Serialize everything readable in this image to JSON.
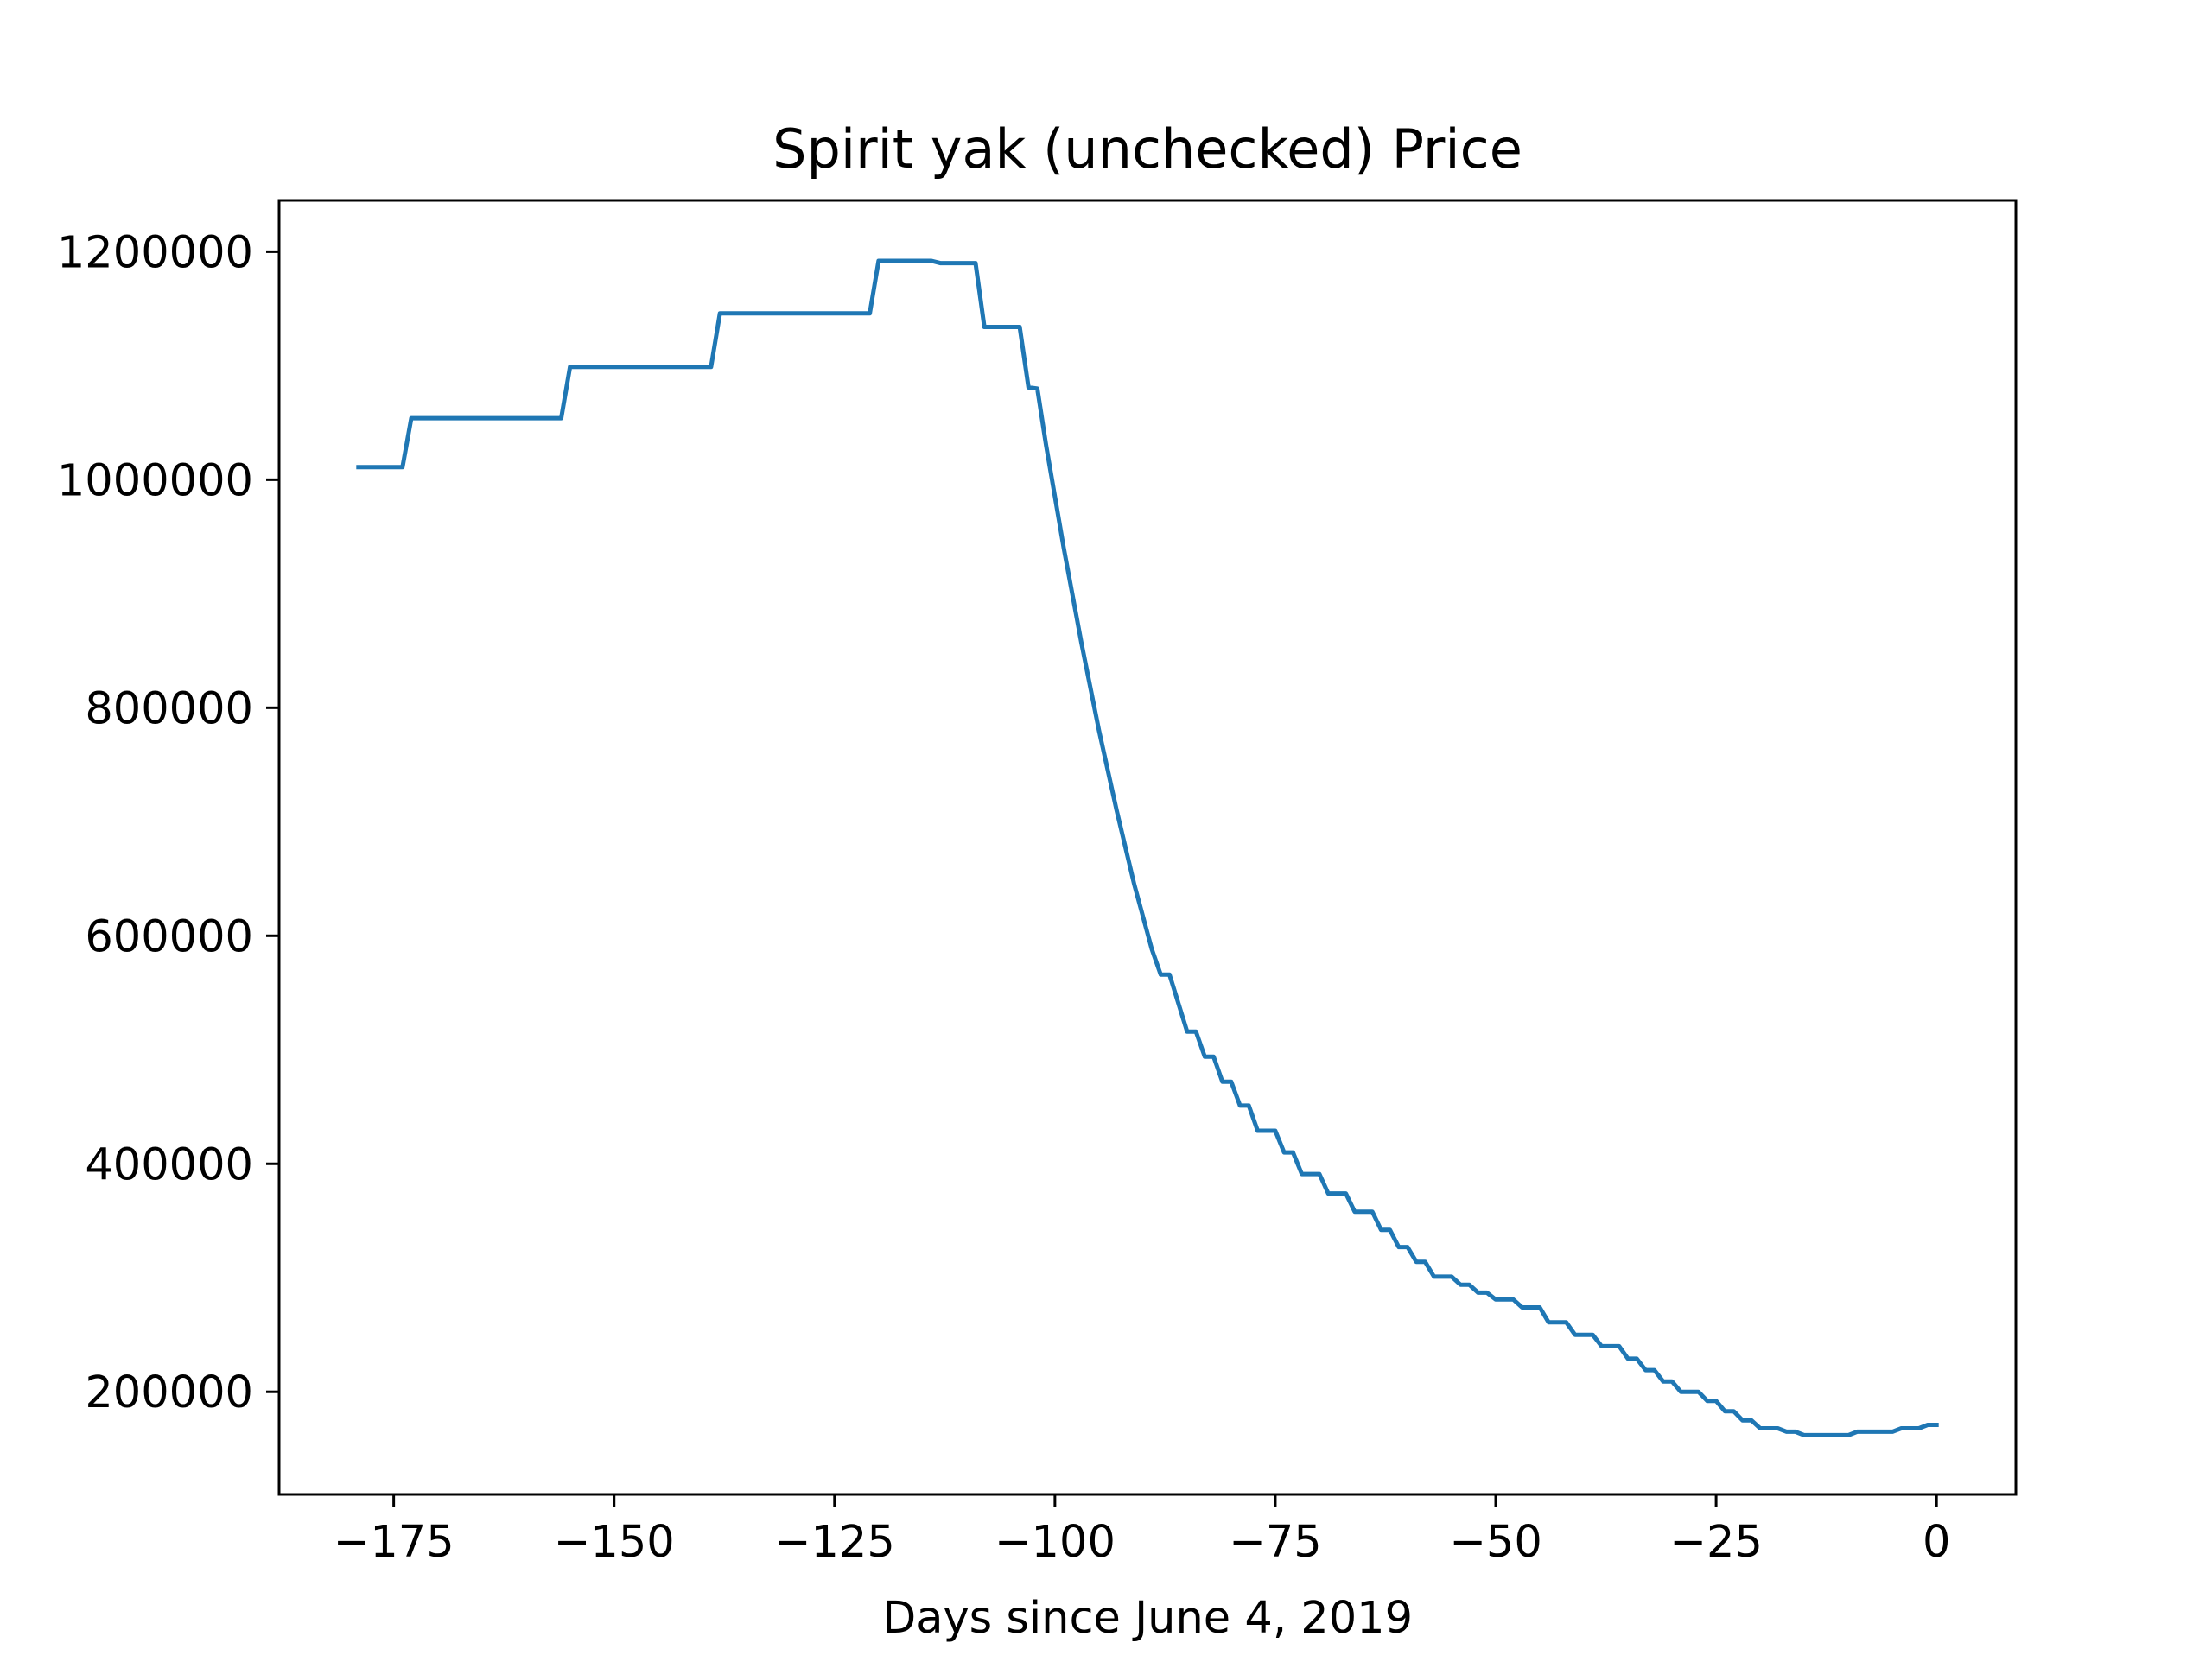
{
  "chart_data": {
    "type": "line",
    "title": "Spirit yak (unchecked) Price",
    "xlabel": "Days since June 4, 2019",
    "ylabel": "",
    "xlim": [
      -188,
      9
    ],
    "ylim": [
      110000,
      1245000
    ],
    "xticks": [
      -175,
      -150,
      -125,
      -100,
      -75,
      -50,
      -25,
      0
    ],
    "xtick_labels": [
      "−175",
      "−150",
      "−125",
      "−100",
      "−75",
      "−50",
      "−25",
      "0"
    ],
    "yticks": [
      200000,
      400000,
      600000,
      800000,
      1000000,
      1200000
    ],
    "ytick_labels": [
      "200000",
      "400000",
      "600000",
      "800000",
      "1000000",
      "1200000"
    ],
    "grid": false,
    "line_color": "#1f77b4",
    "series": [
      {
        "name": "",
        "x": [
          -179,
          -174,
          -173,
          -156,
          -155,
          -139,
          -138,
          -121,
          -120,
          -114,
          -113,
          -109,
          -108,
          -104,
          -103,
          -102,
          -101,
          -99,
          -97,
          -95,
          -93,
          -91,
          -89,
          -88,
          -87,
          -86,
          -85,
          -84,
          -83,
          -82,
          -81,
          -80,
          -79,
          -78,
          -77,
          -76,
          -75,
          -74,
          -73,
          -72,
          -71,
          -70,
          -69,
          -68,
          -67,
          -66,
          -65,
          -64,
          -63,
          -62,
          -61,
          -60,
          -59,
          -58,
          -57,
          -56,
          -55,
          -54,
          -53,
          -52,
          -51,
          -50,
          -49,
          -48,
          -47,
          -46,
          -45,
          -44,
          -43,
          -42,
          -41,
          -40,
          -39,
          -38,
          -37,
          -36,
          -35,
          -34,
          -33,
          -32,
          -31,
          -30,
          -29,
          -28,
          -27,
          -26,
          -25,
          -24,
          -23,
          -22,
          -21,
          -20,
          -19,
          -18,
          -17,
          -16,
          -15,
          -14,
          -13,
          -12,
          -11,
          -10,
          -9,
          -8,
          -7,
          -6,
          -5,
          -4,
          -3,
          -2,
          -1,
          0
        ],
        "y": [
          1011000,
          1011000,
          1054000,
          1054000,
          1099000,
          1099000,
          1146000,
          1146000,
          1192000,
          1192000,
          1190000,
          1190000,
          1134000,
          1134000,
          1081000,
          1080000,
          1030000,
          940000,
          857000,
          780000,
          710000,
          645000,
          588000,
          566000,
          566000,
          541000,
          516000,
          516000,
          494000,
          494000,
          472000,
          472000,
          451000,
          451000,
          429000,
          429000,
          429000,
          410000,
          410000,
          391000,
          391000,
          391000,
          374000,
          374000,
          374000,
          358000,
          358000,
          358000,
          342000,
          342000,
          327000,
          327000,
          314000,
          314000,
          301000,
          301000,
          301000,
          294000,
          294000,
          287000,
          287000,
          281000,
          281000,
          281000,
          274000,
          274000,
          274000,
          261000,
          261000,
          261000,
          250000,
          250000,
          250000,
          240000,
          240000,
          240000,
          229000,
          229000,
          219000,
          219000,
          209000,
          209000,
          200000,
          200000,
          200000,
          192000,
          192000,
          183000,
          183000,
          175000,
          175000,
          168000,
          168000,
          168000,
          165000,
          165000,
          162000,
          162000,
          162000,
          162000,
          162000,
          162000,
          165000,
          165000,
          165000,
          165000,
          165000,
          168000,
          168000,
          168000,
          171000,
          171000
        ]
      }
    ]
  }
}
